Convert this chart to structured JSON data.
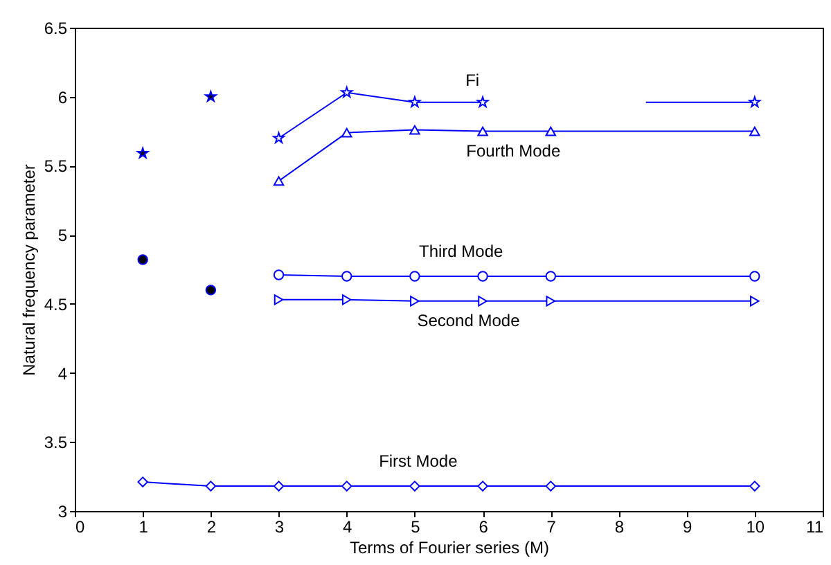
{
  "chart_data": {
    "type": "line",
    "xlabel": "Terms of Fourier series (M)",
    "ylabel": "Natural frequency parameter",
    "xlim": [
      0,
      11
    ],
    "xticks": [
      0,
      1,
      2,
      3,
      4,
      5,
      6,
      7,
      8,
      9,
      10,
      11
    ],
    "ylim": [
      3,
      6.5
    ],
    "yticks": [
      3,
      3.5,
      4,
      4.5,
      5,
      5.5,
      6,
      6.5
    ],
    "grid": false,
    "series": [
      {
        "type": "scatter",
        "color": "#000000",
        "marker": "star",
        "x": [
          1,
          2
        ],
        "values": [
          5.59,
          6.0
        ]
      },
      {
        "type": "scatter",
        "color": "#000000",
        "marker": "circle",
        "x": [
          1,
          2
        ],
        "values": [
          4.82,
          4.6
        ]
      },
      {
        "name": "Fi",
        "color": "#0000ff",
        "marker": "star",
        "line_style": "solid",
        "x": [
          3,
          4,
          5,
          6
        ],
        "values": [
          5.7,
          6.03,
          5.96,
          5.96
        ]
      },
      {
        "color": "#0000ff",
        "marker": "none",
        "line_style": "solid",
        "x": [
          8.4,
          10
        ],
        "values": [
          5.96,
          5.96
        ]
      },
      {
        "color": "#0000ff",
        "marker": "star",
        "x": [
          10
        ],
        "values": [
          5.96
        ]
      },
      {
        "name": "Fourth  Mode",
        "color": "#0000ff",
        "marker": "triangle",
        "line_style": "solid",
        "x": [
          3,
          4,
          5,
          6,
          7,
          10
        ],
        "values": [
          5.39,
          5.74,
          5.76,
          5.75,
          5.75,
          5.75
        ]
      },
      {
        "name": "Third  Mode",
        "color": "#0000ff",
        "marker": "circle",
        "line_style": "solid",
        "x": [
          3,
          4,
          5,
          6,
          7,
          10
        ],
        "values": [
          4.71,
          4.7,
          4.7,
          4.7,
          4.7,
          4.7
        ]
      },
      {
        "name": "Second  Mode",
        "color": "#0000ff",
        "marker": "triangle-right",
        "line_style": "solid",
        "x": [
          3,
          4,
          5,
          6,
          7,
          10
        ],
        "values": [
          4.53,
          4.53,
          4.52,
          4.52,
          4.52,
          4.52
        ]
      },
      {
        "name": "First  Mode",
        "color": "#0000ff",
        "marker": "diamond",
        "line_style": "solid",
        "x": [
          1,
          2,
          3,
          4,
          5,
          6,
          7,
          10
        ],
        "values": [
          3.21,
          3.18,
          3.18,
          3.18,
          3.18,
          3.18,
          3.18,
          3.18
        ]
      }
    ]
  }
}
